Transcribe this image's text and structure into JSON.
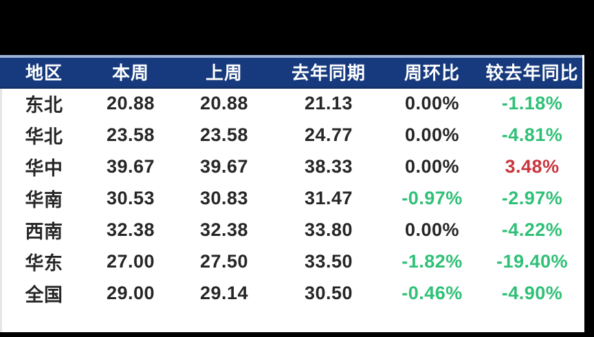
{
  "colors": {
    "page_bg": "#000000",
    "panel_bg": "#ffffff",
    "header_bg": "#163a7d",
    "header_text": "#ffffff",
    "header_top_line": "#9db3d6",
    "header_bottom_line": "#12306a",
    "panel_left_line": "#e6e6e6",
    "value_text": "#262626",
    "negative": "#2fc077",
    "positive": "#c9353c"
  },
  "table": {
    "columns": [
      {
        "label": "地区"
      },
      {
        "label": "本周"
      },
      {
        "label": "上周"
      },
      {
        "label": "去年同期"
      },
      {
        "label": "周环比"
      },
      {
        "label": "较去年同比"
      }
    ],
    "rows": [
      {
        "region": "东北",
        "this_week": "20.88",
        "last_week": "20.88",
        "last_year_period": "21.13",
        "wow": "0.00%",
        "wow_tone": "neutral",
        "yoy": "-1.18%",
        "yoy_tone": "negative"
      },
      {
        "region": "华北",
        "this_week": "23.58",
        "last_week": "23.58",
        "last_year_period": "24.77",
        "wow": "0.00%",
        "wow_tone": "neutral",
        "yoy": "-4.81%",
        "yoy_tone": "negative"
      },
      {
        "region": "华中",
        "this_week": "39.67",
        "last_week": "39.67",
        "last_year_period": "38.33",
        "wow": "0.00%",
        "wow_tone": "neutral",
        "yoy": "3.48%",
        "yoy_tone": "positive"
      },
      {
        "region": "华南",
        "this_week": "30.53",
        "last_week": "30.83",
        "last_year_period": "31.47",
        "wow": "-0.97%",
        "wow_tone": "negative",
        "yoy": "-2.97%",
        "yoy_tone": "negative"
      },
      {
        "region": "西南",
        "this_week": "32.38",
        "last_week": "32.38",
        "last_year_period": "33.80",
        "wow": "0.00%",
        "wow_tone": "neutral",
        "yoy": "-4.22%",
        "yoy_tone": "negative"
      },
      {
        "region": "华东",
        "this_week": "27.00",
        "last_week": "27.50",
        "last_year_period": "33.50",
        "wow": "-1.82%",
        "wow_tone": "negative",
        "yoy": "-19.40%",
        "yoy_tone": "negative"
      },
      {
        "region": "全国",
        "this_week": "29.00",
        "last_week": "29.14",
        "last_year_period": "30.50",
        "wow": "-0.46%",
        "wow_tone": "negative",
        "yoy": "-4.90%",
        "yoy_tone": "negative"
      }
    ]
  },
  "chart_data": {
    "type": "table",
    "title": "",
    "columns": [
      "地区",
      "本周",
      "上周",
      "去年同期",
      "周环比",
      "较去年同比"
    ],
    "rows": [
      [
        "东北",
        20.88,
        20.88,
        21.13,
        "0.00%",
        "-1.18%"
      ],
      [
        "华北",
        23.58,
        23.58,
        24.77,
        "0.00%",
        "-4.81%"
      ],
      [
        "华中",
        39.67,
        39.67,
        38.33,
        "0.00%",
        "3.48%"
      ],
      [
        "华南",
        30.53,
        30.83,
        31.47,
        "-0.97%",
        "-2.97%"
      ],
      [
        "西南",
        32.38,
        32.38,
        33.8,
        "0.00%",
        "-4.22%"
      ],
      [
        "华东",
        27.0,
        27.5,
        33.5,
        "-1.82%",
        "-19.40%"
      ],
      [
        "全国",
        29.0,
        29.14,
        30.5,
        "-0.46%",
        "-4.90%"
      ]
    ],
    "notes": "percent cells colored green when negative, red when positive"
  }
}
